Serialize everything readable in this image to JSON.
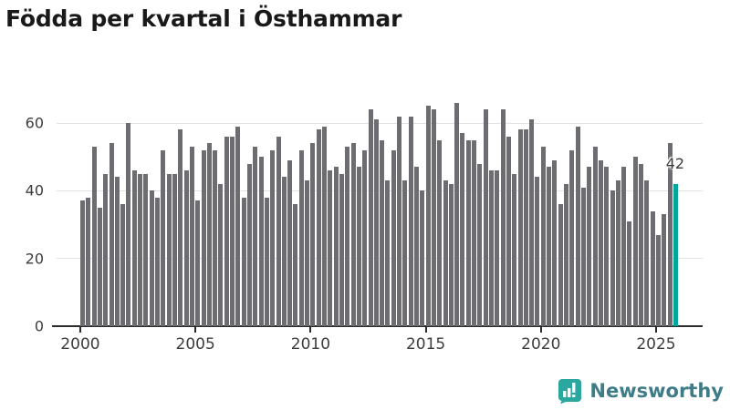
{
  "title": "Födda per kvartal i Östhammar",
  "chart_data": {
    "type": "bar",
    "title": "Födda per kvartal i Östhammar",
    "x_start": "2000-Q1",
    "x_end": "2025-Q4",
    "frequency": "quarterly",
    "x_tick_labels": [
      "2000",
      "2005",
      "2010",
      "2015",
      "2020",
      "2025"
    ],
    "x_tick_years": [
      2000,
      2005,
      2010,
      2015,
      2020,
      2025
    ],
    "y_ticks": [
      0,
      20,
      40,
      60
    ],
    "y_tick_labels": [
      "0",
      "20",
      "40",
      "60"
    ],
    "ylim": [
      0,
      66
    ],
    "grid": "horizontal",
    "legend": "none",
    "series": [
      {
        "name": "Födda",
        "values": [
          37,
          38,
          53,
          35,
          45,
          54,
          44,
          36,
          60,
          46,
          45,
          45,
          40,
          38,
          52,
          45,
          45,
          58,
          46,
          53,
          37,
          52,
          54,
          52,
          42,
          56,
          56,
          59,
          38,
          48,
          53,
          50,
          38,
          52,
          56,
          44,
          49,
          36,
          52,
          43,
          54,
          58,
          59,
          46,
          47,
          45,
          53,
          54,
          47,
          52,
          64,
          61,
          55,
          43,
          52,
          62,
          43,
          62,
          47,
          40,
          65,
          64,
          55,
          43,
          42,
          66,
          57,
          55,
          55,
          48,
          64,
          46,
          46,
          64,
          56,
          45,
          58,
          58,
          61,
          44,
          53,
          47,
          49,
          36,
          42,
          52,
          59,
          41,
          47,
          53,
          49,
          47,
          40,
          43,
          47,
          31,
          50,
          48,
          43,
          34,
          27,
          33,
          54,
          42
        ]
      }
    ],
    "highlight": {
      "index": 103,
      "quarter": "2025-Q4",
      "value": 42,
      "label": "42"
    },
    "colors": {
      "bar": "#6c6c71",
      "highlight": "#00a59c",
      "gridline": "#e2e2e2",
      "axis": "#2b2b2b",
      "axis_text": "#3d3d3d",
      "title_text": "#191919"
    }
  },
  "logo": {
    "text": "Newsworthy",
    "icon": "bar-chart-speech-bubble-icon",
    "icon_color": "#2aa79e",
    "text_color": "#3e7d87"
  }
}
